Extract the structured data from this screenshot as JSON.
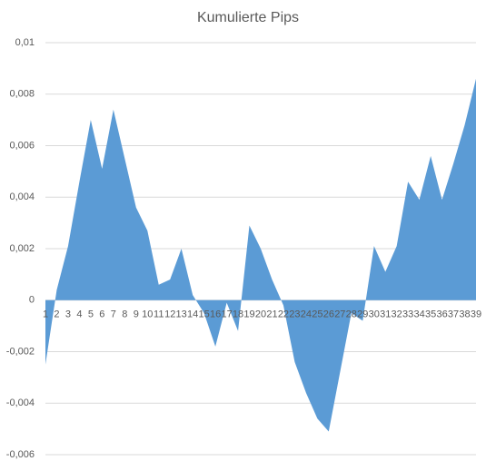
{
  "chart_data": {
    "type": "area",
    "title": "Kumulierte Pips",
    "categories": [
      "1",
      "2",
      "3",
      "4",
      "5",
      "6",
      "7",
      "8",
      "9",
      "10",
      "11",
      "12",
      "13",
      "14",
      "15",
      "16",
      "17",
      "18",
      "19",
      "20",
      "21",
      "22",
      "23",
      "24",
      "25",
      "26",
      "27",
      "28",
      "29",
      "30",
      "31",
      "32",
      "33",
      "34",
      "35",
      "36",
      "37",
      "38",
      "39"
    ],
    "series": [
      {
        "name": "Kumulierte Pips",
        "color": "#5b9bd5",
        "values": [
          -0.0025,
          0.0004,
          0.0021,
          0.0046,
          0.007,
          0.0051,
          0.0074,
          0.0055,
          0.0036,
          0.0027,
          0.0006,
          0.0008,
          0.002,
          0.0002,
          -0.0005,
          -0.0018,
          -0.0001,
          -0.0012,
          0.0029,
          0.002,
          0.0008,
          -0.0002,
          -0.0024,
          -0.0036,
          -0.0046,
          -0.0051,
          -0.0028,
          -0.0005,
          -0.0008,
          0.0021,
          0.0011,
          0.0021,
          0.0046,
          0.0039,
          0.0056,
          0.0039,
          0.0053,
          0.0068,
          0.0086
        ]
      }
    ],
    "ylim": [
      -0.006,
      0.01
    ],
    "yticks": [
      {
        "value": 0.01,
        "label": "0,01"
      },
      {
        "value": 0.008,
        "label": "0,008"
      },
      {
        "value": 0.006,
        "label": "0,006"
      },
      {
        "value": 0.004,
        "label": "0,004"
      },
      {
        "value": 0.002,
        "label": "0,002"
      },
      0,
      {
        "value": -0.002,
        "label": "-0,002"
      },
      {
        "value": -0.004,
        "label": "-0,004"
      },
      {
        "value": -0.006,
        "label": "-0,006"
      }
    ],
    "grid": true
  }
}
